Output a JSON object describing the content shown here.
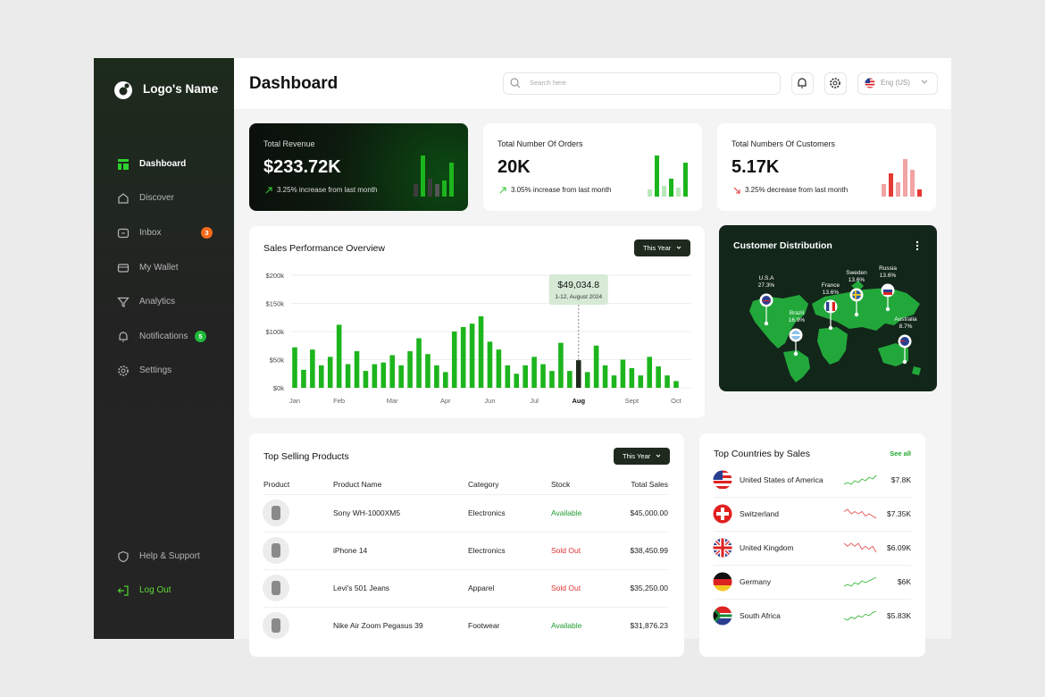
{
  "sidebar": {
    "logo": "Logo's Name",
    "nav": [
      {
        "label": "Dashboard",
        "active": true
      },
      {
        "label": "Discover"
      },
      {
        "label": "Inbox",
        "badge": 3
      },
      {
        "label": "My Wallet"
      },
      {
        "label": "Analytics"
      },
      {
        "label": "Notifications",
        "badge": 5
      },
      {
        "label": "Settings"
      }
    ],
    "footer": [
      {
        "label": "Help & Support"
      },
      {
        "label": "Log Out"
      }
    ]
  },
  "header": {
    "title": "Dashboard",
    "search_placeholder": "Search here",
    "language": "Eng (US)"
  },
  "stats": [
    {
      "title": "Total Revenue",
      "value": "$233.72K",
      "change": "3.25% increase from last month",
      "trend": "up",
      "bars": [
        14,
        46,
        20,
        14,
        18,
        38
      ],
      "bar_colors": [
        "#3d3d3d",
        "#1db51d",
        "#3d3d3d",
        "#555555",
        "#1db51d",
        "#1db51d"
      ]
    },
    {
      "title": "Total Number Of Orders",
      "value": "20K",
      "change": "3.05% increase from last month",
      "trend": "up",
      "bars": [
        8,
        46,
        12,
        20,
        10,
        38
      ],
      "bar_colors": [
        "#b9e8b9",
        "#1db51d",
        "#b9e8b9",
        "#1db51d",
        "#b9e8b9",
        "#1db51d"
      ]
    },
    {
      "title": "Total Numbers Of Customers",
      "value": "5.17K",
      "change": "3.25% decrease from last month",
      "trend": "down",
      "bars": [
        14,
        26,
        16,
        42,
        30,
        8
      ],
      "bar_colors": [
        "#f2a3a3",
        "#e53935",
        "#f2a3a3",
        "#f2a3a3",
        "#f2a3a3",
        "#e53935"
      ]
    }
  ],
  "sales_chart": {
    "type": "bar",
    "title": "Sales Performance Overview",
    "filter": "This Year",
    "categories": [
      "Jan",
      null,
      null,
      null,
      null,
      "Feb",
      null,
      null,
      null,
      null,
      null,
      "Mar",
      null,
      null,
      null,
      null,
      null,
      "Apr",
      null,
      null,
      null,
      null,
      "Jun",
      null,
      null,
      null,
      null,
      "Jul",
      null,
      null,
      null,
      null,
      "Aug",
      null,
      null,
      null,
      null,
      null,
      "Sept",
      null,
      null,
      null,
      null,
      "Oct"
    ],
    "values": [
      72000,
      32000,
      68000,
      40000,
      55000,
      112000,
      42000,
      65000,
      30000,
      42000,
      45000,
      58000,
      40000,
      65000,
      88000,
      60000,
      40000,
      28000,
      100000,
      108000,
      114000,
      127000,
      82000,
      68000,
      40000,
      25000,
      40000,
      55000,
      42000,
      30000,
      80000,
      30000,
      49034.8,
      28000,
      75000,
      40000,
      22000,
      50000,
      35000,
      22000,
      55000,
      38000,
      22000,
      12000
    ],
    "value_labels": [
      null,
      null,
      null,
      null,
      null,
      null,
      null,
      null,
      null,
      null,
      null,
      null,
      null,
      null,
      null,
      null,
      null,
      null,
      null,
      null,
      null,
      null,
      null,
      null,
      null,
      null,
      null,
      null,
      null,
      null,
      null,
      null,
      "$49,034.8",
      null,
      null,
      null,
      null,
      null,
      null,
      null,
      null,
      null,
      null,
      null
    ],
    "tooltip_date": "1-12, August 2024",
    "color": "#1db51d",
    "highlight_color": "#1f2b1f",
    "ylim": [
      0,
      200000
    ],
    "yticks": [
      {
        "value": 0,
        "label": "$0k"
      },
      {
        "value": 50000,
        "label": "$50k"
      },
      {
        "value": 100000,
        "label": "$100k"
      },
      {
        "value": 150000,
        "label": "$150k"
      },
      {
        "value": 200000,
        "label": "$200k"
      }
    ],
    "grid": true
  },
  "distribution": {
    "title": "Customer Distribution",
    "pins": [
      {
        "country": "U.S.A",
        "share": "27.3%"
      },
      {
        "country": "Brazil",
        "share": "16.9%"
      },
      {
        "country": "France",
        "share": "13.6%"
      },
      {
        "country": "Sweden",
        "share": "13.6%"
      },
      {
        "country": "Russia",
        "share": "13.6%"
      },
      {
        "country": "Australia",
        "share": "8.7%"
      }
    ]
  },
  "top_products": {
    "title": "Top Selling Products",
    "filter": "This Year",
    "columns": [
      "Product",
      "Product Name",
      "Category",
      "Stock",
      "Total Sales"
    ],
    "rows": [
      {
        "name": "Sony WH-1000XM5",
        "category": "Electronics",
        "stock": "Available",
        "in_stock": true,
        "total": "$45,000.00"
      },
      {
        "name": "iPhone 14",
        "category": "Electronics",
        "stock": "Sold Out",
        "in_stock": false,
        "total": "$38,450.99"
      },
      {
        "name": "Levi's 501 Jeans",
        "category": "Apparel",
        "stock": "Sold Out",
        "in_stock": false,
        "total": "$35,250.00"
      },
      {
        "name": "Nike Air Zoom Pegasus 39",
        "category": "Footwear",
        "stock": "Available",
        "in_stock": true,
        "total": "$31,876.23"
      }
    ]
  },
  "top_countries": {
    "title": "Top Countries by Sales",
    "link": "See all",
    "rows": [
      {
        "name": "United States of America",
        "sales": "$7.8K",
        "trend": [
          3,
          4,
          3,
          5,
          4,
          6,
          5,
          7,
          6,
          8
        ],
        "trend_color": "#37b837"
      },
      {
        "name": "Switzerland",
        "sales": "$7.35K",
        "trend": [
          6,
          7,
          5,
          6,
          5,
          6,
          4,
          5,
          4,
          3
        ],
        "trend_color": "#e55353"
      },
      {
        "name": "United Kingdom",
        "sales": "$6.09K",
        "trend": [
          6,
          5,
          6,
          5,
          6,
          4,
          5,
          4,
          5,
          3
        ],
        "trend_color": "#e55353"
      },
      {
        "name": "Germany",
        "sales": "$6K",
        "trend": [
          2,
          3,
          2,
          4,
          3,
          5,
          4,
          5,
          6,
          7
        ],
        "trend_color": "#37b837"
      },
      {
        "name": "South Africa",
        "sales": "$5.83K",
        "trend": [
          3,
          2,
          4,
          3,
          5,
          4,
          6,
          5,
          7,
          8
        ],
        "trend_color": "#37b837"
      }
    ]
  }
}
